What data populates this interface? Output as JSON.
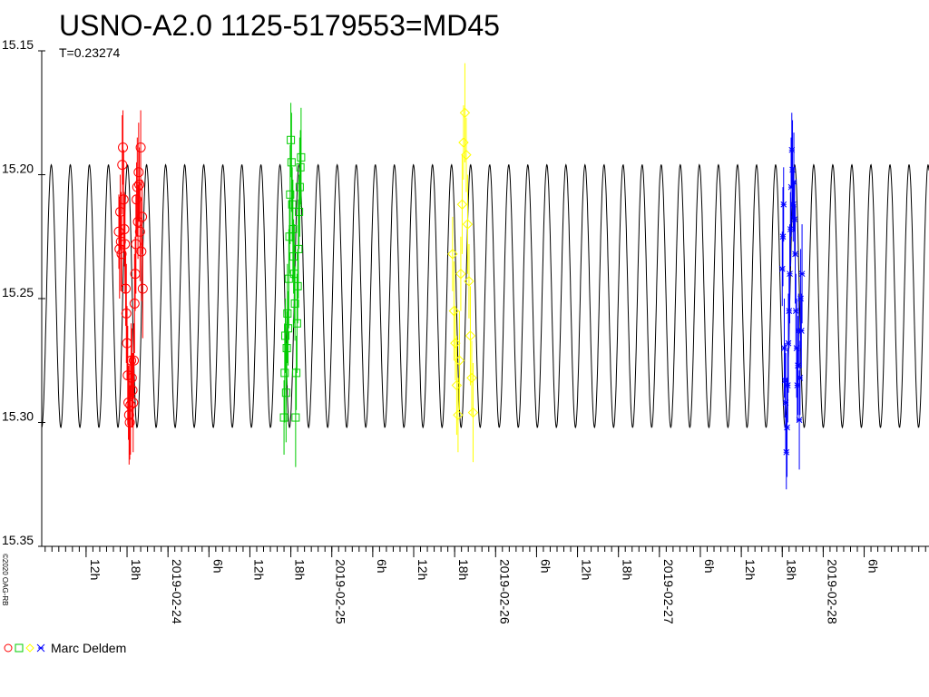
{
  "title": "USNO-A2.0 1125-5179553=MD45",
  "subtitle": "T=0.23274",
  "copyright": "©2020 OAG-RB",
  "chart_data": {
    "type": "line",
    "title": "USNO-A2.0 1125-5179553=MD45",
    "subtitle": "T=0.23274",
    "xlabel": "",
    "ylabel": "",
    "y_inverted": true,
    "ylim": [
      15.15,
      15.35
    ],
    "y_ticks": [
      "15.15",
      "15.20",
      "15.25",
      "15.30",
      "15.35"
    ],
    "x_major_ticks": [
      {
        "t": 6.5,
        "label": "12h"
      },
      {
        "t": 12.5,
        "label": "18h"
      },
      {
        "t": 18.5,
        "label": "2019-02-24"
      },
      {
        "t": 24.5,
        "label": "6h"
      },
      {
        "t": 30.5,
        "label": "12h"
      },
      {
        "t": 36.5,
        "label": "18h"
      },
      {
        "t": 42.5,
        "label": "2019-02-25"
      },
      {
        "t": 48.5,
        "label": "6h"
      },
      {
        "t": 54.5,
        "label": "12h"
      },
      {
        "t": 60.5,
        "label": "18h"
      },
      {
        "t": 66.5,
        "label": "2019-02-26"
      },
      {
        "t": 72.5,
        "label": "6h"
      },
      {
        "t": 78.5,
        "label": "12h"
      },
      {
        "t": 84.5,
        "label": "18h"
      },
      {
        "t": 90.5,
        "label": "2019-02-27"
      },
      {
        "t": 96.5,
        "label": "6h"
      },
      {
        "t": 102.5,
        "label": "12h"
      },
      {
        "t": 108.5,
        "label": "18h"
      },
      {
        "t": 114.5,
        "label": "2019-02-28"
      },
      {
        "t": 120.5,
        "label": "6h"
      }
    ],
    "x_range_hours": [
      0,
      130
    ],
    "model": {
      "name": "fit",
      "color": "#000000",
      "period_days": 0.11637,
      "mean": 15.249,
      "amplitude": 0.053,
      "x_start": 0,
      "x_end": 130
    },
    "series": [
      {
        "name": "Marc Deldem",
        "color": "#ff0000",
        "symbol": "circle",
        "points": [
          [
            11.3,
            15.223,
            0.015
          ],
          [
            11.4,
            15.23,
            0.02
          ],
          [
            11.5,
            15.215,
            0.015
          ],
          [
            11.6,
            15.227,
            0.02
          ],
          [
            11.7,
            15.232,
            0.015
          ],
          [
            11.8,
            15.196,
            0.02
          ],
          [
            11.9,
            15.189,
            0.015
          ],
          [
            12.0,
            15.21,
            0.02
          ],
          [
            12.1,
            15.222,
            0.015
          ],
          [
            12.2,
            15.228,
            0.02
          ],
          [
            12.3,
            15.246,
            0.015
          ],
          [
            12.4,
            15.256,
            0.02
          ],
          [
            12.5,
            15.268,
            0.015
          ],
          [
            12.6,
            15.281,
            0.02
          ],
          [
            12.7,
            15.292,
            0.015
          ],
          [
            12.8,
            15.297,
            0.02
          ],
          [
            12.9,
            15.3,
            0.015
          ],
          [
            13.0,
            15.293,
            0.02
          ],
          [
            13.1,
            15.275,
            0.015
          ],
          [
            13.2,
            15.282,
            0.02
          ],
          [
            13.3,
            15.287,
            0.015
          ],
          [
            13.4,
            15.292,
            0.02
          ],
          [
            13.5,
            15.275,
            0.015
          ],
          [
            13.6,
            15.252,
            0.02
          ],
          [
            13.7,
            15.24,
            0.015
          ],
          [
            13.8,
            15.228,
            0.02
          ],
          [
            13.9,
            15.21,
            0.015
          ],
          [
            14.0,
            15.205,
            0.02
          ],
          [
            14.1,
            15.219,
            0.015
          ],
          [
            14.2,
            15.199,
            0.02
          ],
          [
            14.3,
            15.204,
            0.015
          ],
          [
            14.4,
            15.223,
            0.02
          ],
          [
            14.5,
            15.189,
            0.015
          ],
          [
            14.6,
            15.231,
            0.02
          ],
          [
            14.7,
            15.217,
            0.015
          ],
          [
            14.8,
            15.246,
            0.02
          ]
        ]
      },
      {
        "name": "Marc Deldem",
        "color": "#00cc00",
        "symbol": "square",
        "points": [
          [
            35.5,
            15.298,
            0.015
          ],
          [
            35.6,
            15.28,
            0.02
          ],
          [
            35.7,
            15.265,
            0.015
          ],
          [
            35.8,
            15.288,
            0.02
          ],
          [
            35.9,
            15.27,
            0.015
          ],
          [
            36.0,
            15.256,
            0.02
          ],
          [
            36.1,
            15.262,
            0.015
          ],
          [
            36.2,
            15.242,
            0.02
          ],
          [
            36.3,
            15.225,
            0.015
          ],
          [
            36.4,
            15.208,
            0.02
          ],
          [
            36.5,
            15.186,
            0.015
          ],
          [
            36.6,
            15.195,
            0.02
          ],
          [
            36.7,
            15.212,
            0.015
          ],
          [
            36.8,
            15.222,
            0.02
          ],
          [
            36.9,
            15.233,
            0.015
          ],
          [
            37.0,
            15.24,
            0.02
          ],
          [
            37.1,
            15.252,
            0.015
          ],
          [
            37.2,
            15.298,
            0.02
          ],
          [
            37.3,
            15.28,
            0.015
          ],
          [
            37.4,
            15.26,
            0.02
          ],
          [
            37.5,
            15.245,
            0.015
          ],
          [
            37.6,
            15.23,
            0.02
          ],
          [
            37.7,
            15.215,
            0.015
          ],
          [
            37.8,
            15.205,
            0.02
          ],
          [
            37.9,
            15.197,
            0.015
          ],
          [
            38.0,
            15.193,
            0.02
          ]
        ]
      },
      {
        "name": "Marc Deldem",
        "color": "#ffff00",
        "symbol": "diamond",
        "points": [
          [
            60.2,
            15.232,
            0.015
          ],
          [
            60.4,
            15.255,
            0.02
          ],
          [
            60.6,
            15.268,
            0.015
          ],
          [
            60.8,
            15.285,
            0.02
          ],
          [
            61.0,
            15.297,
            0.015
          ],
          [
            61.2,
            15.275,
            0.02
          ],
          [
            61.4,
            15.24,
            0.015
          ],
          [
            61.6,
            15.212,
            0.02
          ],
          [
            61.8,
            15.187,
            0.015
          ],
          [
            62.0,
            15.175,
            0.02
          ],
          [
            62.2,
            15.192,
            0.015
          ],
          [
            62.4,
            15.22,
            0.02
          ],
          [
            62.6,
            15.243,
            0.015
          ],
          [
            62.8,
            15.265,
            0.02
          ],
          [
            63.0,
            15.282,
            0.015
          ],
          [
            63.2,
            15.296,
            0.02
          ]
        ]
      },
      {
        "name": "Marc Deldem",
        "color": "#0000ff",
        "symbol": "star",
        "points": [
          [
            108.5,
            15.238,
            0.015
          ],
          [
            108.6,
            15.225,
            0.02
          ],
          [
            108.7,
            15.212,
            0.015
          ],
          [
            108.8,
            15.27,
            0.02
          ],
          [
            108.9,
            15.283,
            0.015
          ],
          [
            109.0,
            15.292,
            0.02
          ],
          [
            109.1,
            15.312,
            0.015
          ],
          [
            109.2,
            15.302,
            0.02
          ],
          [
            109.3,
            15.285,
            0.015
          ],
          [
            109.4,
            15.268,
            0.02
          ],
          [
            109.5,
            15.255,
            0.015
          ],
          [
            109.6,
            15.24,
            0.02
          ],
          [
            109.7,
            15.222,
            0.015
          ],
          [
            109.8,
            15.205,
            0.02
          ],
          [
            109.9,
            15.19,
            0.015
          ],
          [
            110.0,
            15.198,
            0.02
          ],
          [
            110.1,
            15.212,
            0.015
          ],
          [
            110.2,
            15.203,
            0.02
          ],
          [
            110.3,
            15.218,
            0.015
          ],
          [
            110.4,
            15.232,
            0.02
          ],
          [
            110.5,
            15.255,
            0.015
          ],
          [
            110.6,
            15.27,
            0.02
          ],
          [
            110.7,
            15.285,
            0.015
          ],
          [
            110.8,
            15.277,
            0.02
          ],
          [
            110.9,
            15.263,
            0.015
          ],
          [
            111.0,
            15.299,
            0.02
          ],
          [
            111.1,
            15.282,
            0.015
          ],
          [
            111.2,
            15.25,
            0.02
          ],
          [
            111.3,
            15.263,
            0.015
          ],
          [
            111.4,
            15.24,
            0.02
          ]
        ]
      }
    ],
    "legend": {
      "placement": "bottom-left",
      "label": "Marc Deldem"
    },
    "grid": false
  }
}
